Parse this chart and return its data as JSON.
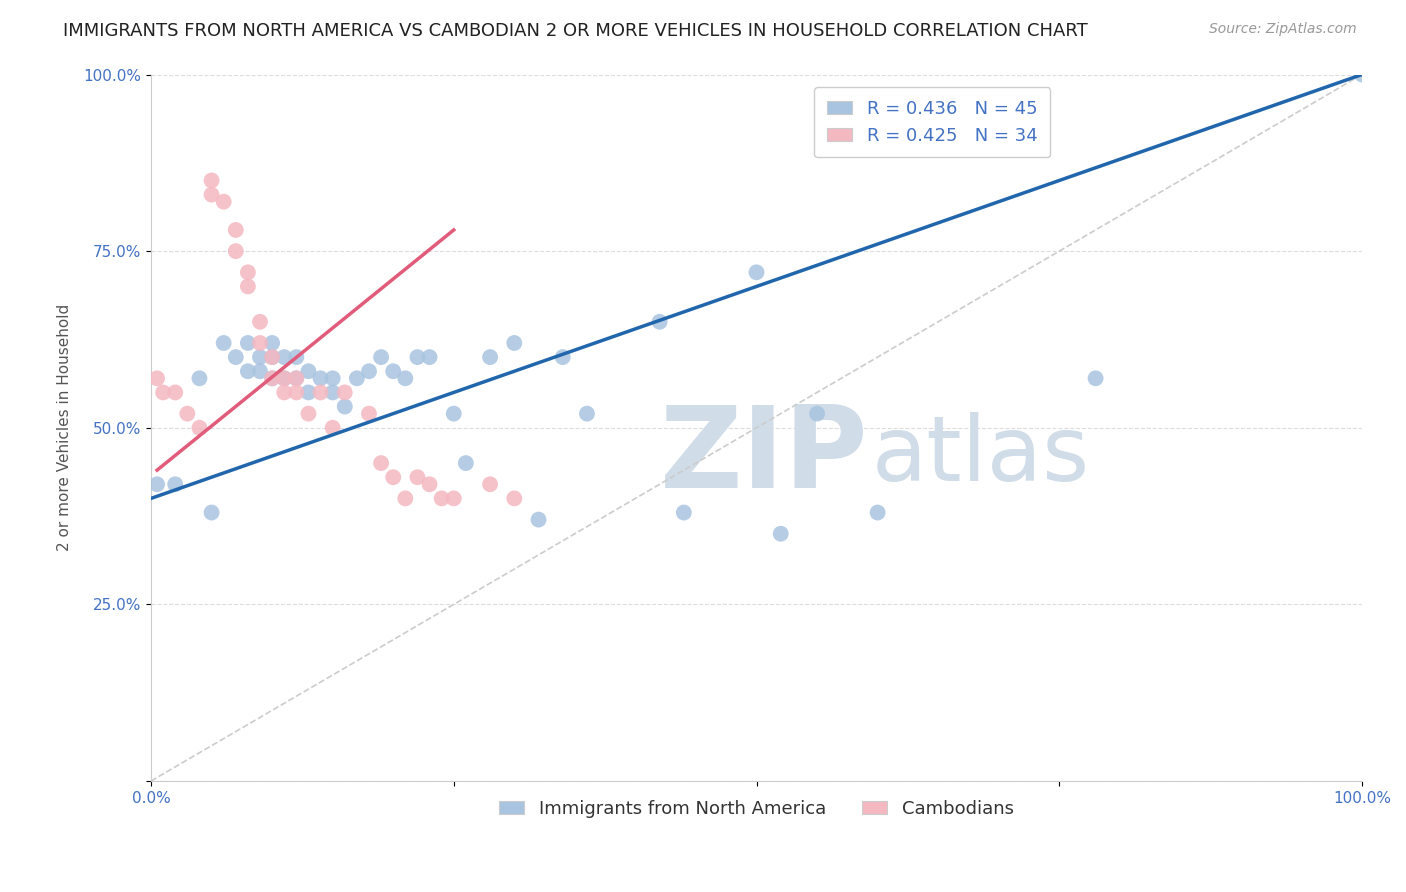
{
  "title": "IMMIGRANTS FROM NORTH AMERICA VS CAMBODIAN 2 OR MORE VEHICLES IN HOUSEHOLD CORRELATION CHART",
  "source": "Source: ZipAtlas.com",
  "xlabel": "",
  "ylabel": "2 or more Vehicles in Household",
  "xlim": [
    0.0,
    1.0
  ],
  "ylim": [
    0.0,
    1.0
  ],
  "x_tick_labels": [
    "0.0%",
    "",
    "",
    "",
    "100.0%"
  ],
  "y_tick_labels": [
    "",
    "25.0%",
    "50.0%",
    "75.0%",
    "100.0%"
  ],
  "blue_R": 0.436,
  "blue_N": 45,
  "pink_R": 0.425,
  "pink_N": 34,
  "blue_color": "#a8c4e0",
  "blue_line_color": "#2166ac",
  "pink_color": "#f4b8c1",
  "pink_line_color": "#e05c7a",
  "watermark_zip": "ZIP",
  "watermark_atlas": "atlas",
  "watermark_color": "#d0dce8",
  "legend_label_blue": "Immigrants from North America",
  "legend_label_pink": "Cambodians",
  "blue_x": [
    0.005,
    0.02,
    0.04,
    0.05,
    0.06,
    0.07,
    0.08,
    0.08,
    0.09,
    0.09,
    0.1,
    0.1,
    0.1,
    0.11,
    0.11,
    0.12,
    0.12,
    0.13,
    0.13,
    0.14,
    0.15,
    0.15,
    0.16,
    0.17,
    0.18,
    0.19,
    0.2,
    0.21,
    0.22,
    0.23,
    0.25,
    0.26,
    0.28,
    0.3,
    0.32,
    0.34,
    0.36,
    0.42,
    0.44,
    0.5,
    0.52,
    0.55,
    0.6,
    0.78,
    1.0
  ],
  "blue_y": [
    0.42,
    0.42,
    0.57,
    0.38,
    0.62,
    0.6,
    0.58,
    0.62,
    0.58,
    0.6,
    0.57,
    0.6,
    0.62,
    0.57,
    0.6,
    0.57,
    0.6,
    0.55,
    0.58,
    0.57,
    0.55,
    0.57,
    0.53,
    0.57,
    0.58,
    0.6,
    0.58,
    0.57,
    0.6,
    0.6,
    0.52,
    0.45,
    0.6,
    0.62,
    0.37,
    0.6,
    0.52,
    0.65,
    0.38,
    0.72,
    0.35,
    0.52,
    0.38,
    0.57,
    1.0
  ],
  "pink_x": [
    0.005,
    0.01,
    0.02,
    0.03,
    0.04,
    0.05,
    0.05,
    0.06,
    0.07,
    0.07,
    0.08,
    0.08,
    0.09,
    0.09,
    0.1,
    0.1,
    0.11,
    0.11,
    0.12,
    0.12,
    0.13,
    0.14,
    0.15,
    0.16,
    0.18,
    0.19,
    0.2,
    0.21,
    0.22,
    0.23,
    0.24,
    0.25,
    0.28,
    0.3
  ],
  "pink_y": [
    0.57,
    0.55,
    0.55,
    0.52,
    0.5,
    0.83,
    0.85,
    0.82,
    0.75,
    0.78,
    0.7,
    0.72,
    0.62,
    0.65,
    0.57,
    0.6,
    0.55,
    0.57,
    0.55,
    0.57,
    0.52,
    0.55,
    0.5,
    0.55,
    0.52,
    0.45,
    0.43,
    0.4,
    0.43,
    0.42,
    0.4,
    0.4,
    0.42,
    0.4
  ],
  "blue_trendline_x0": 0.0,
  "blue_trendline_y0": 0.4,
  "blue_trendline_x1": 1.0,
  "blue_trendline_y1": 1.0,
  "pink_trendline_x0": 0.005,
  "pink_trendline_y0": 0.44,
  "pink_trendline_x1": 0.25,
  "pink_trendline_y1": 0.78,
  "title_fontsize": 13,
  "axis_label_fontsize": 11,
  "tick_fontsize": 11,
  "source_fontsize": 10,
  "legend_fontsize": 13
}
